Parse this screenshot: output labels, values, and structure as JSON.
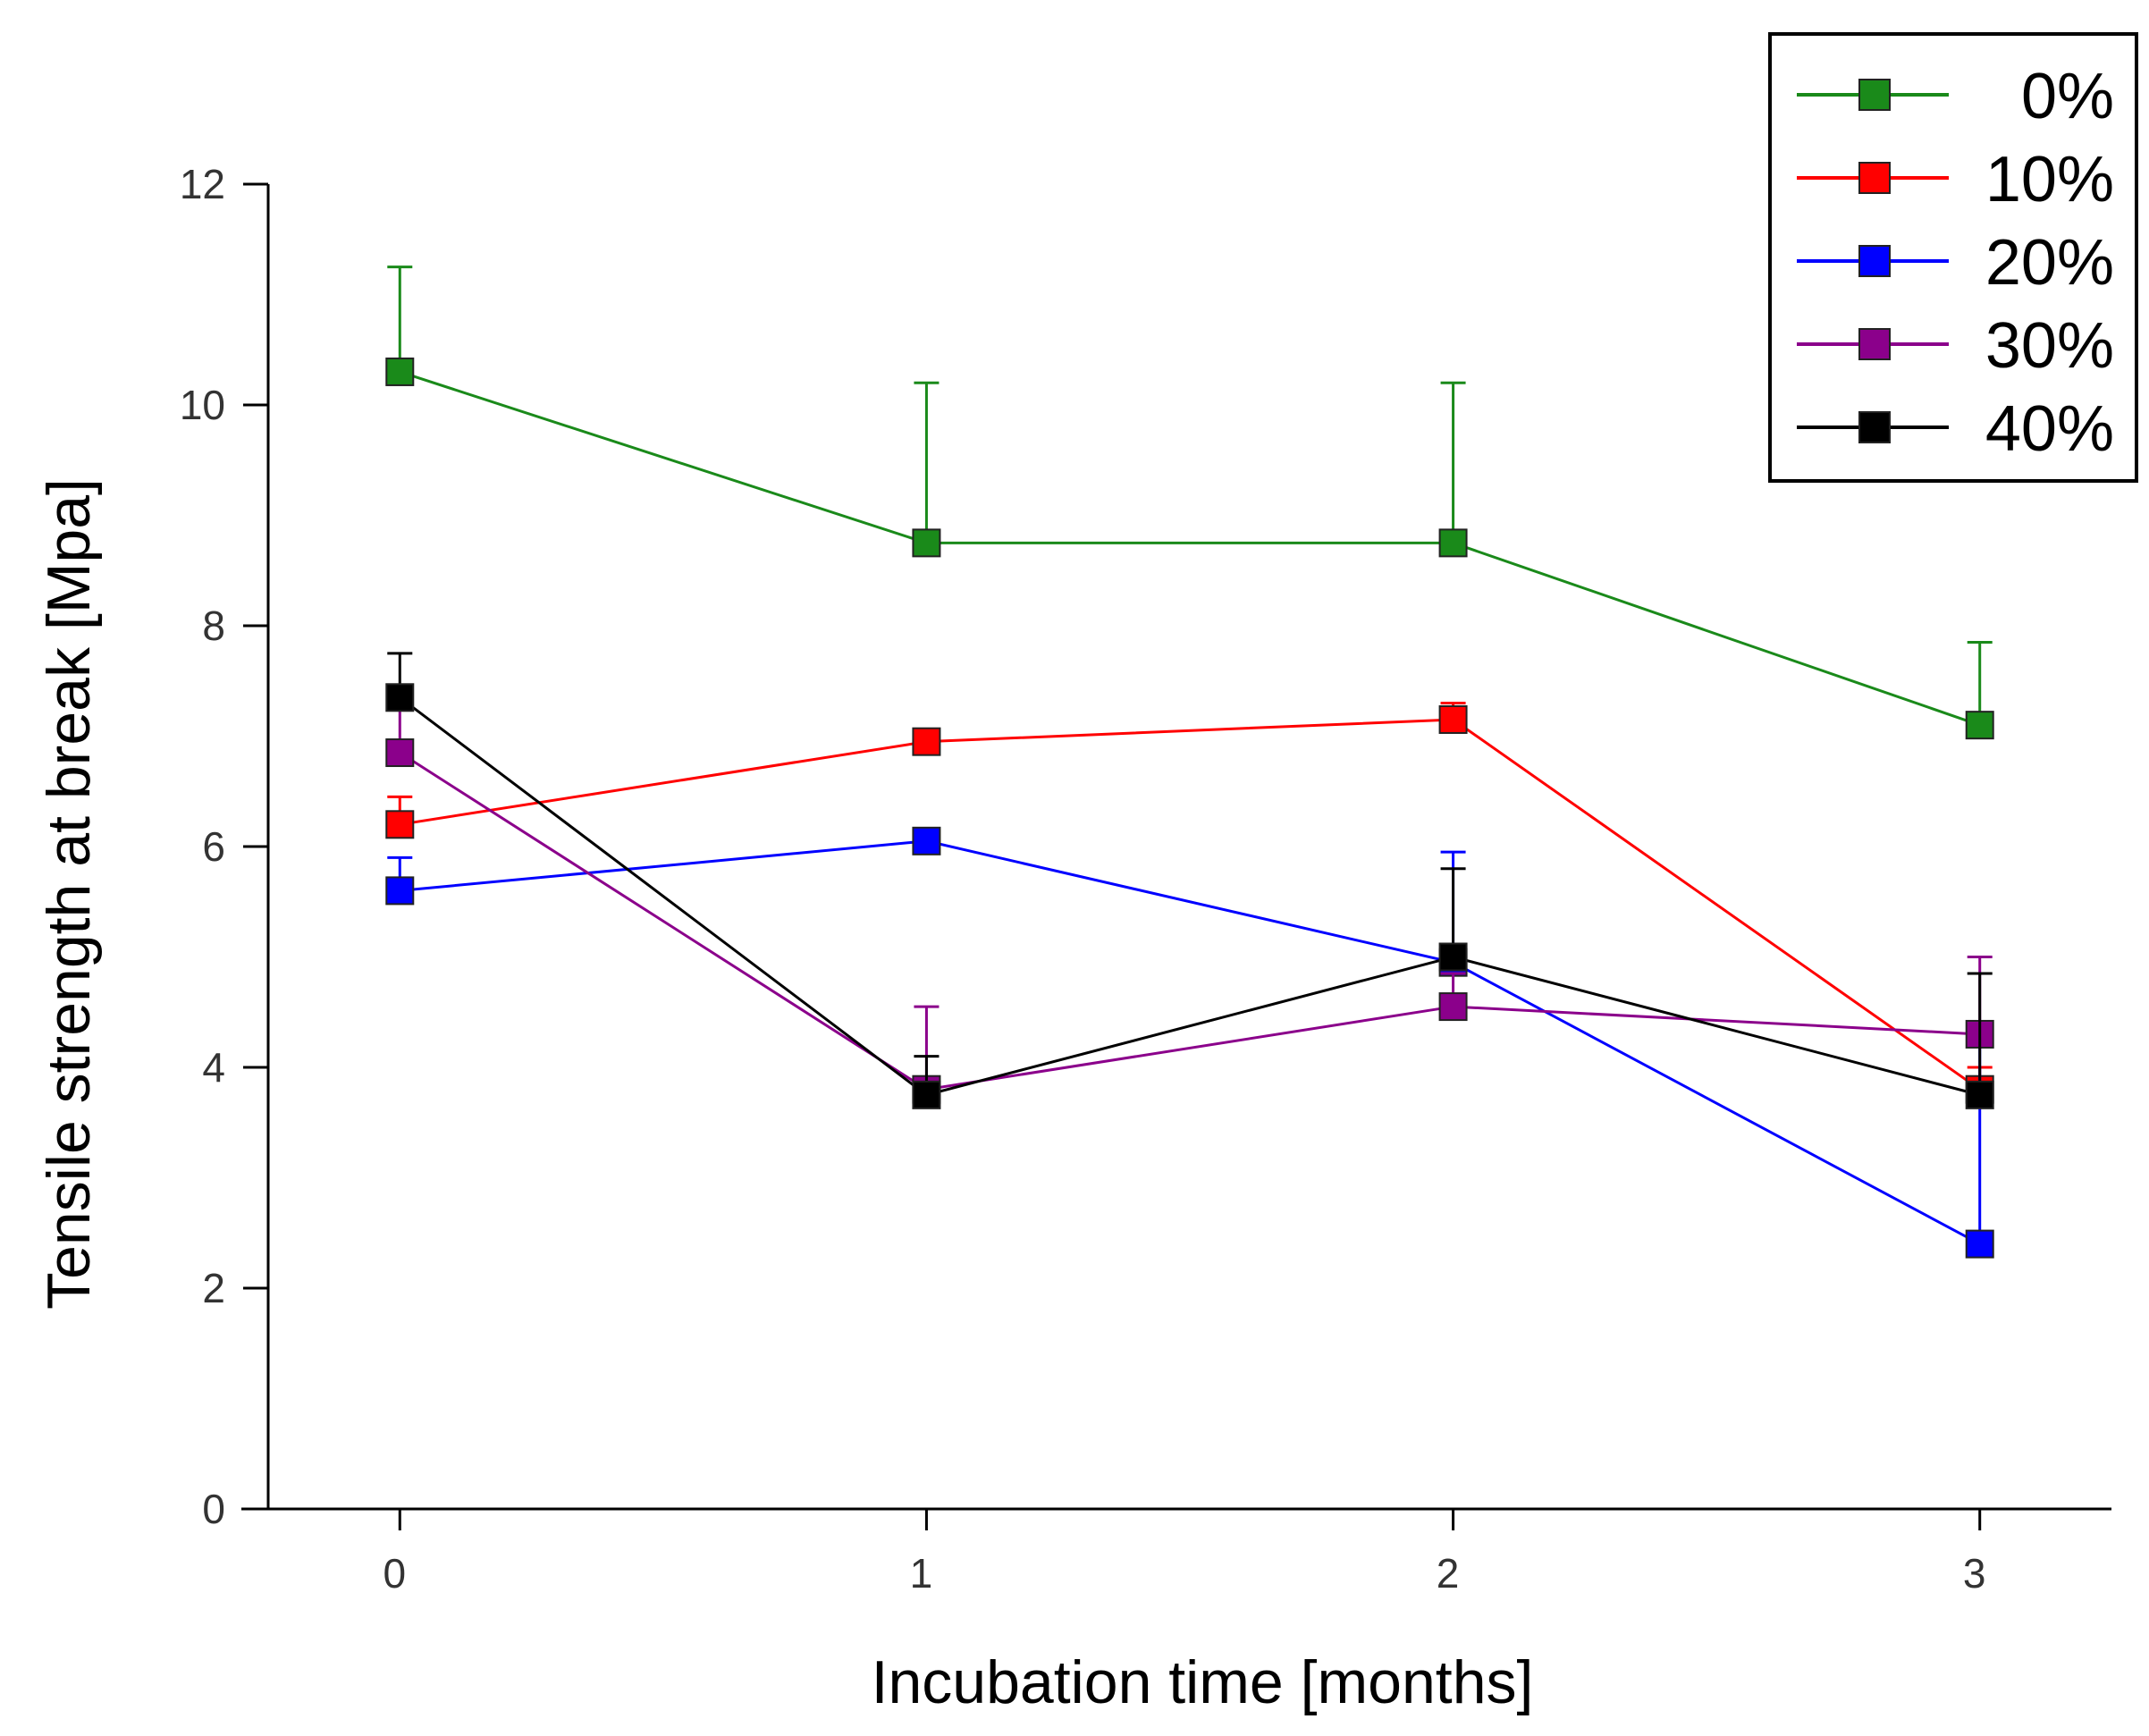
{
  "chart_data": {
    "type": "line",
    "title": "",
    "xlabel": "Incubation time [months]",
    "ylabel": "Tensile strength at break [Mpa]",
    "x": [
      0,
      1,
      2,
      3
    ],
    "x_ticks": [
      "0",
      "1",
      "2",
      "3"
    ],
    "xlim": [
      -0.25,
      3.25
    ],
    "ylim": [
      0,
      12
    ],
    "y_ticks": [
      "0",
      "2",
      "4",
      "6",
      "8",
      "10",
      "12"
    ],
    "grid": false,
    "legend_position": "top-right",
    "series": [
      {
        "name": "0%",
        "color": "#1a8a1a",
        "values": [
          10.3,
          8.75,
          8.75,
          7.1
        ],
        "errors": [
          0.95,
          1.45,
          1.45,
          0.75
        ]
      },
      {
        "name": "10%",
        "color": "#ff0000",
        "values": [
          6.2,
          6.95,
          7.15,
          3.8
        ],
        "errors": [
          0.25,
          0.1,
          0.15,
          0.2
        ]
      },
      {
        "name": "20%",
        "color": "#0000ff",
        "values": [
          5.6,
          6.05,
          4.95,
          2.4
        ],
        "errors": [
          0.3,
          0.1,
          1.0,
          1.9
        ]
      },
      {
        "name": "30%",
        "color": "#8b008b",
        "values": [
          6.85,
          3.8,
          4.55,
          4.3
        ],
        "errors": [
          0.55,
          0.75,
          0.3,
          0.7
        ]
      },
      {
        "name": "40%",
        "color": "#000000",
        "values": [
          7.35,
          3.75,
          5.0,
          3.75
        ],
        "errors": [
          0.4,
          0.35,
          0.8,
          1.1
        ]
      }
    ]
  }
}
